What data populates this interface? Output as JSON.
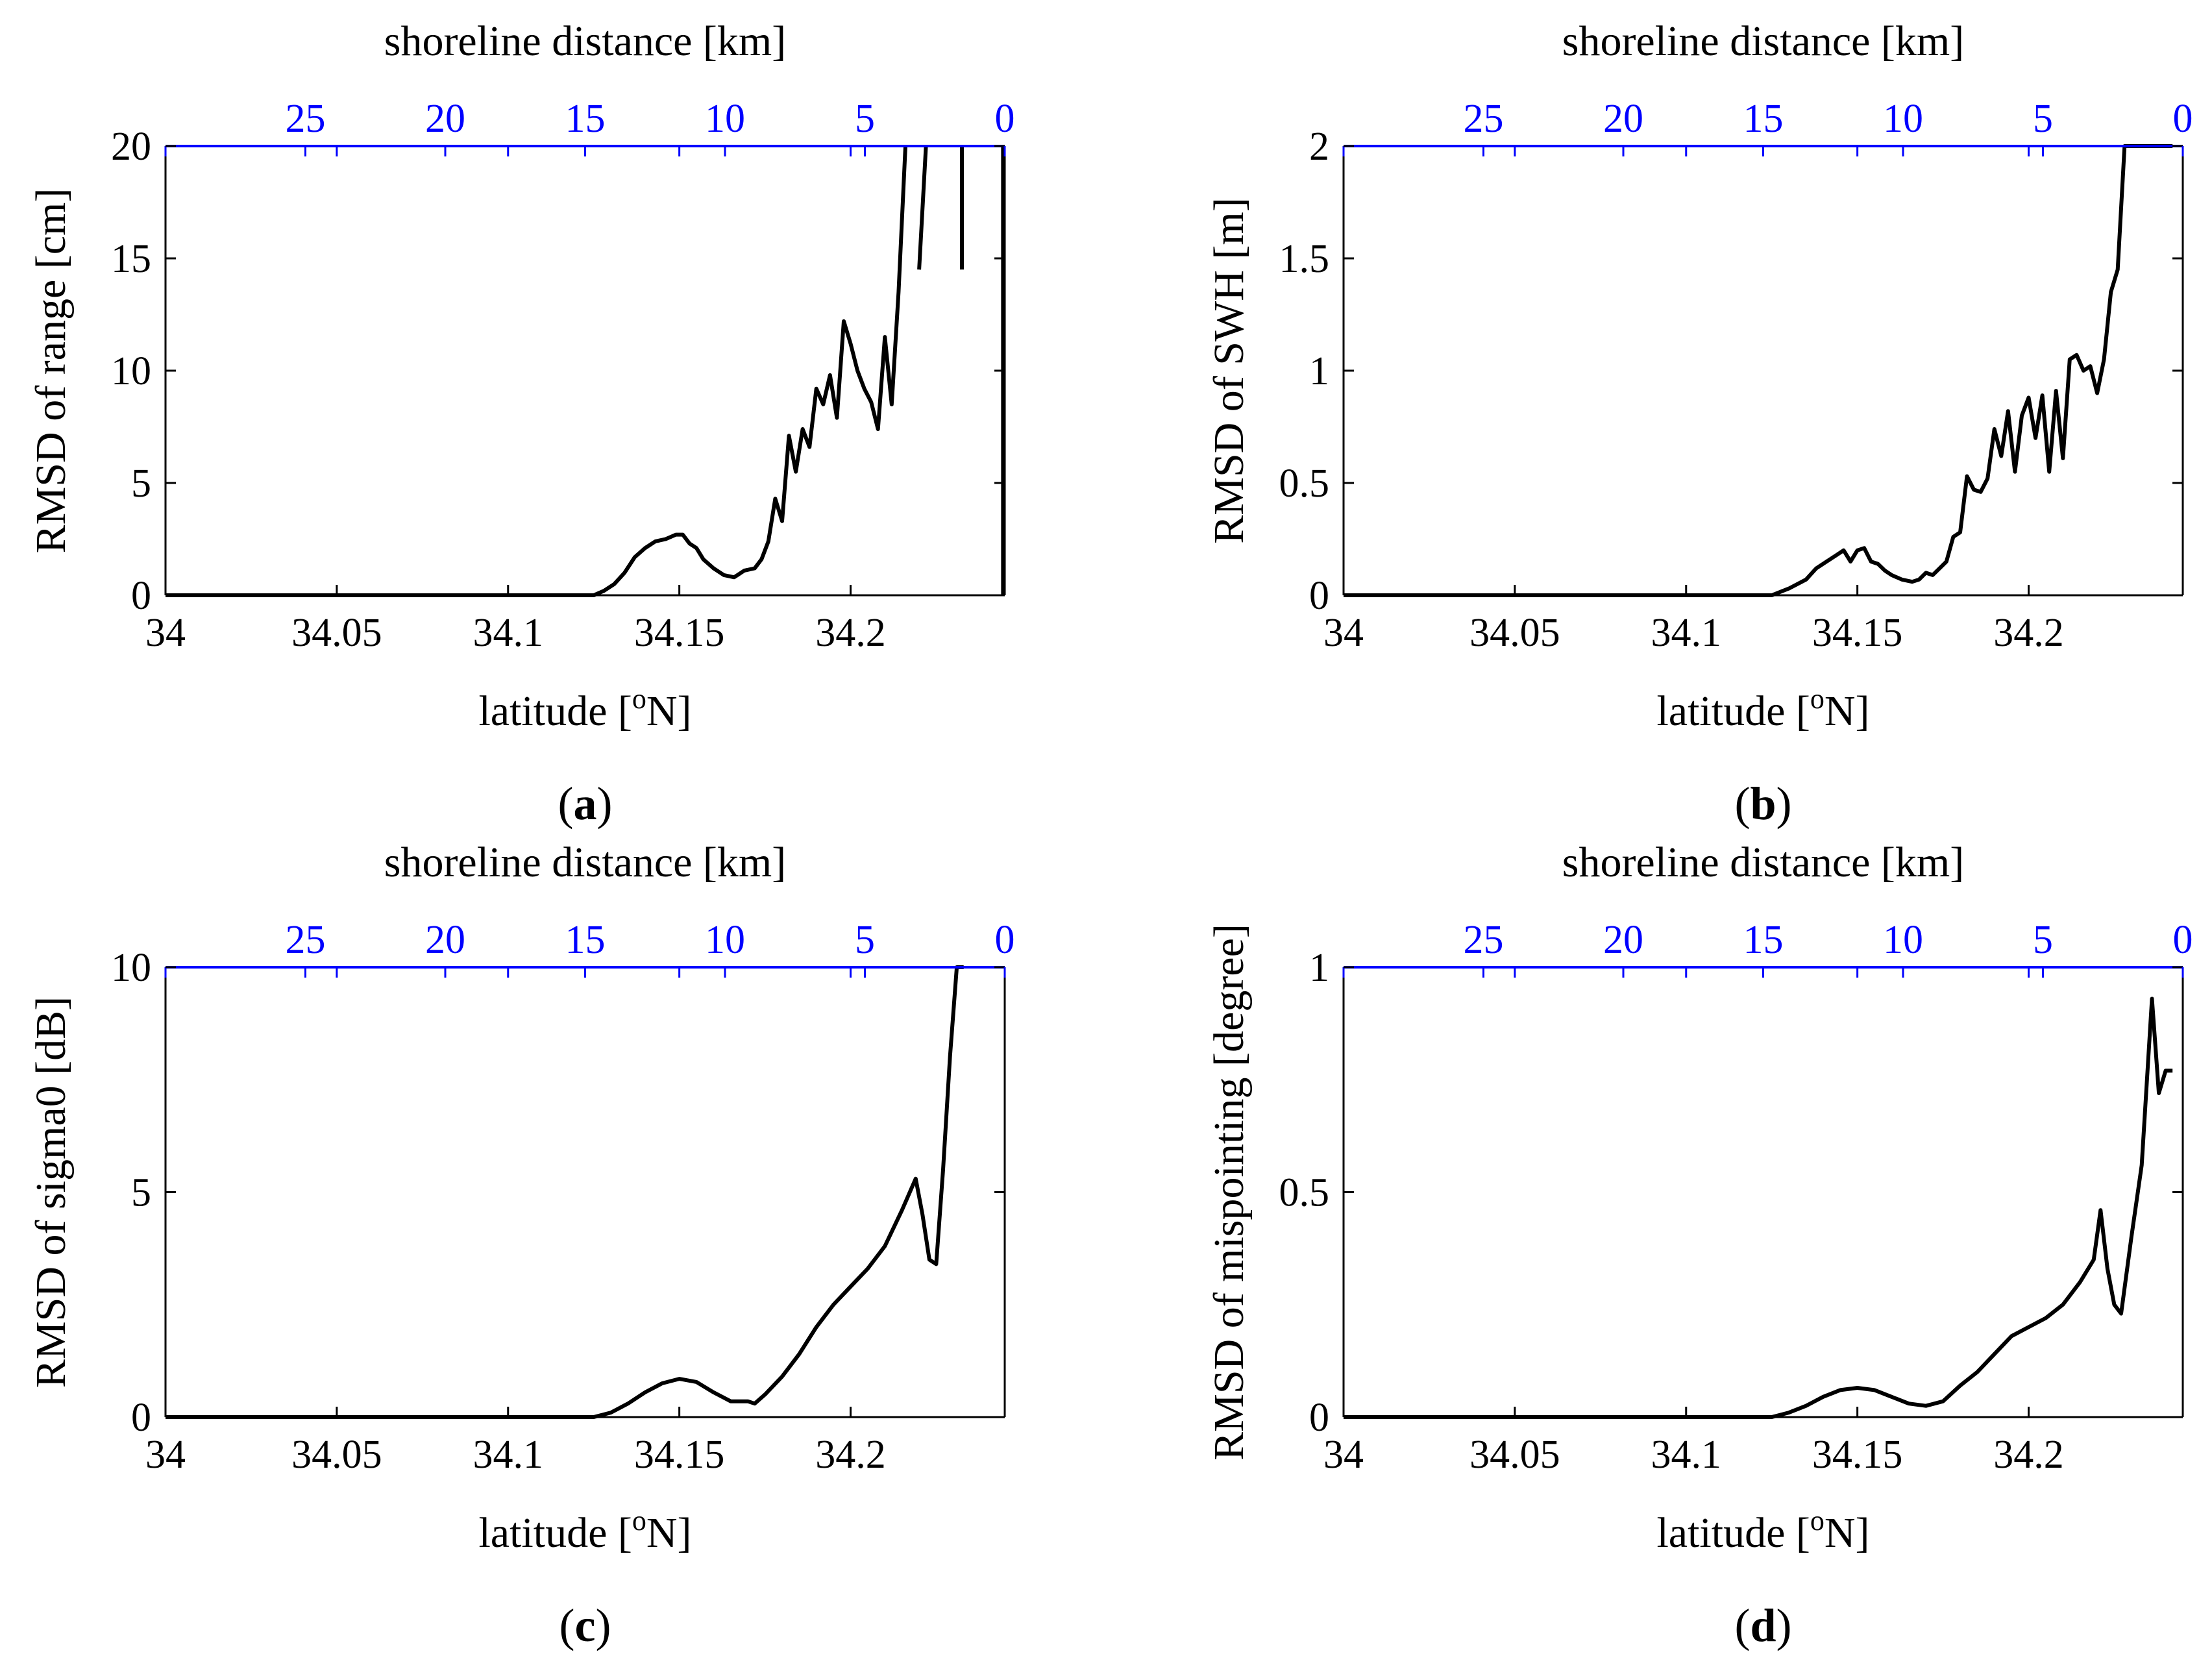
{
  "colors": {
    "bottom_axis": "#000000",
    "top_axis": "#0000ff",
    "line": "#000000",
    "background": "#ffffff"
  },
  "chart_data": [
    {
      "type": "line",
      "panel_label_open": "(",
      "panel_label_letter": "a",
      "panel_label_close": ")",
      "title": "",
      "xlabel": "latitude [",
      "xlabel_superscript": "o",
      "xlabel_unit": "N]",
      "ylabel": "RMSD of range [cm]",
      "top_xlabel": "shoreline distance [km]",
      "xlim": [
        34,
        34.245
      ],
      "ylim": [
        0,
        20
      ],
      "x_ticks": [
        34,
        34.05,
        34.1,
        34.15,
        34.2
      ],
      "x_tick_labels": [
        "34",
        "34.05",
        "34.1",
        "34.15",
        "34.2"
      ],
      "y_ticks": [
        0,
        5,
        10,
        15,
        20
      ],
      "y_tick_labels": [
        "0",
        "5",
        "10",
        "15",
        "20"
      ],
      "top_x_ticks": [
        25,
        20,
        15,
        10,
        5,
        0
      ],
      "top_x_tick_labels": [
        "25",
        "20",
        "15",
        "10",
        "5",
        "0"
      ],
      "top_xlim": [
        30,
        0
      ],
      "grid": false,
      "series": [
        {
          "name": "RMSD of range",
          "x": [
            34.0,
            34.05,
            34.1,
            34.125,
            34.128,
            34.131,
            34.134,
            34.137,
            34.14,
            34.143,
            34.146,
            34.149,
            34.151,
            34.153,
            34.155,
            34.157,
            34.16,
            34.163,
            34.166,
            34.169,
            34.172,
            34.174,
            34.176,
            34.178,
            34.18,
            34.182,
            34.184,
            34.186,
            34.188,
            34.19,
            34.192,
            34.194,
            34.196,
            34.198,
            34.2,
            34.202,
            34.204,
            34.206,
            34.208,
            34.21,
            34.212,
            34.214,
            34.216,
            34.218,
            34.22,
            34.222
          ],
          "y": [
            0,
            0,
            0,
            0,
            0.2,
            0.5,
            1.0,
            1.7,
            2.1,
            2.4,
            2.5,
            2.7,
            2.7,
            2.3,
            2.1,
            1.6,
            1.2,
            0.9,
            0.8,
            1.1,
            1.2,
            1.6,
            2.4,
            4.3,
            3.3,
            7.1,
            5.5,
            7.4,
            6.6,
            9.2,
            8.5,
            9.8,
            7.9,
            12.2,
            11.2,
            10.0,
            9.2,
            8.6,
            7.4,
            11.5,
            8.5,
            13.5,
            20.0,
            null,
            14.5,
            20.0
          ],
          "extra_segments": [
            {
              "x": [
                34.2325,
                34.2325
              ],
              "y": [
                14.5,
                20
              ]
            },
            {
              "x": [
                34.2445,
                34.2445
              ],
              "y": [
                0,
                20
              ]
            }
          ]
        }
      ]
    },
    {
      "type": "line",
      "panel_label_open": "(",
      "panel_label_letter": "b",
      "panel_label_close": ")",
      "title": "",
      "xlabel": "latitude [",
      "xlabel_superscript": "o",
      "xlabel_unit": "N]",
      "ylabel": "RMSD of SWH [m]",
      "top_xlabel": "shoreline distance [km]",
      "xlim": [
        34,
        34.245
      ],
      "ylim": [
        0,
        2
      ],
      "x_ticks": [
        34,
        34.05,
        34.1,
        34.15,
        34.2
      ],
      "x_tick_labels": [
        "34",
        "34.05",
        "34.1",
        "34.15",
        "34.2"
      ],
      "y_ticks": [
        0,
        0.5,
        1,
        1.5,
        2
      ],
      "y_tick_labels": [
        "0",
        "0.5",
        "1",
        "1.5",
        "2"
      ],
      "top_x_ticks": [
        25,
        20,
        15,
        10,
        5,
        0
      ],
      "top_x_tick_labels": [
        "25",
        "20",
        "15",
        "10",
        "5",
        "0"
      ],
      "top_xlim": [
        30,
        0
      ],
      "grid": false,
      "series": [
        {
          "name": "RMSD of SWH",
          "x": [
            34.0,
            34.05,
            34.1,
            34.125,
            34.13,
            34.135,
            34.138,
            34.141,
            34.144,
            34.146,
            34.148,
            34.15,
            34.152,
            34.154,
            34.156,
            34.158,
            34.16,
            34.163,
            34.166,
            34.168,
            34.17,
            34.172,
            34.174,
            34.176,
            34.178,
            34.18,
            34.182,
            34.184,
            34.186,
            34.188,
            34.19,
            34.192,
            34.194,
            34.196,
            34.198,
            34.2,
            34.202,
            34.204,
            34.206,
            34.208,
            34.21,
            34.212,
            34.214,
            34.216,
            34.218,
            34.22,
            34.222,
            34.224,
            34.226,
            34.228,
            34.23,
            34.232,
            34.234,
            34.236,
            34.238,
            34.24,
            34.2415,
            34.242
          ],
          "y": [
            0,
            0,
            0,
            0,
            0.03,
            0.07,
            0.12,
            0.15,
            0.18,
            0.2,
            0.15,
            0.2,
            0.21,
            0.15,
            0.14,
            0.11,
            0.09,
            0.07,
            0.06,
            0.07,
            0.1,
            0.09,
            0.12,
            0.15,
            0.26,
            0.28,
            0.53,
            0.47,
            0.46,
            0.52,
            0.74,
            0.62,
            0.82,
            0.55,
            0.8,
            0.88,
            0.7,
            0.89,
            0.55,
            0.91,
            0.61,
            1.05,
            1.07,
            1.0,
            1.02,
            0.9,
            1.05,
            1.35,
            1.45,
            2.0,
            2.0,
            2.0,
            2.0,
            2.0,
            2.0,
            2.0,
            2.0,
            2.0
          ]
        }
      ]
    },
    {
      "type": "line",
      "panel_label_open": "(",
      "panel_label_letter": "c",
      "panel_label_close": ")",
      "title": "",
      "xlabel": "latitude [",
      "xlabel_superscript": "o",
      "xlabel_unit": "N]",
      "ylabel": "RMSD of sigma0 [dB]",
      "top_xlabel": "shoreline distance [km]",
      "xlim": [
        34,
        34.245
      ],
      "ylim": [
        0,
        10
      ],
      "x_ticks": [
        34,
        34.05,
        34.1,
        34.15,
        34.2
      ],
      "x_tick_labels": [
        "34",
        "34.05",
        "34.1",
        "34.15",
        "34.2"
      ],
      "y_ticks": [
        0,
        5,
        10
      ],
      "y_tick_labels": [
        "0",
        "5",
        "10"
      ],
      "top_x_ticks": [
        25,
        20,
        15,
        10,
        5,
        0
      ],
      "top_x_tick_labels": [
        "25",
        "20",
        "15",
        "10",
        "5",
        "0"
      ],
      "top_xlim": [
        30,
        0
      ],
      "grid": false,
      "series": [
        {
          "name": "RMSD of sigma0",
          "x": [
            34.0,
            34.05,
            34.1,
            34.125,
            34.13,
            34.135,
            34.14,
            34.145,
            34.15,
            34.155,
            34.16,
            34.165,
            34.17,
            34.172,
            34.175,
            34.18,
            34.185,
            34.19,
            34.195,
            34.2,
            34.205,
            34.21,
            34.215,
            34.219,
            34.221,
            34.223,
            34.225,
            34.227,
            34.229,
            34.231,
            34.233
          ],
          "y": [
            0,
            0,
            0,
            0,
            0.1,
            0.3,
            0.55,
            0.75,
            0.85,
            0.78,
            0.55,
            0.35,
            0.35,
            0.3,
            0.5,
            0.9,
            1.4,
            2.0,
            2.5,
            2.9,
            3.3,
            3.8,
            4.6,
            5.3,
            4.5,
            3.5,
            3.4,
            5.5,
            8.0,
            10.0,
            10.0
          ]
        }
      ]
    },
    {
      "type": "line",
      "panel_label_open": "(",
      "panel_label_letter": "d",
      "panel_label_close": ")",
      "title": "",
      "xlabel": "latitude [",
      "xlabel_superscript": "o",
      "xlabel_unit": "N]",
      "ylabel": "RMSD of mispointing [degree]",
      "top_xlabel": "shoreline distance [km]",
      "xlim": [
        34,
        34.245
      ],
      "ylim": [
        0,
        1
      ],
      "x_ticks": [
        34,
        34.05,
        34.1,
        34.15,
        34.2
      ],
      "x_tick_labels": [
        "34",
        "34.05",
        "34.1",
        "34.15",
        "34.2"
      ],
      "y_ticks": [
        0,
        0.5,
        1
      ],
      "y_tick_labels": [
        "0",
        "0.5",
        "1"
      ],
      "top_x_ticks": [
        25,
        20,
        15,
        10,
        5,
        0
      ],
      "top_x_tick_labels": [
        "25",
        "20",
        "15",
        "10",
        "5",
        "0"
      ],
      "top_xlim": [
        30,
        0
      ],
      "grid": false,
      "series": [
        {
          "name": "RMSD of mispointing",
          "x": [
            34.0,
            34.05,
            34.1,
            34.125,
            34.13,
            34.135,
            34.14,
            34.145,
            34.15,
            34.155,
            34.16,
            34.165,
            34.17,
            34.175,
            34.18,
            34.185,
            34.19,
            34.195,
            34.2,
            34.205,
            34.21,
            34.215,
            34.219,
            34.221,
            34.223,
            34.225,
            34.227,
            34.23,
            34.233,
            34.236,
            34.238,
            34.24,
            34.242
          ],
          "y": [
            0,
            0,
            0,
            0,
            0.01,
            0.025,
            0.045,
            0.06,
            0.065,
            0.06,
            0.045,
            0.03,
            0.025,
            0.035,
            0.07,
            0.1,
            0.14,
            0.18,
            0.2,
            0.22,
            0.25,
            0.3,
            0.35,
            0.46,
            0.33,
            0.25,
            0.23,
            0.4,
            0.56,
            0.93,
            0.72,
            0.77,
            0.77
          ]
        }
      ]
    }
  ]
}
